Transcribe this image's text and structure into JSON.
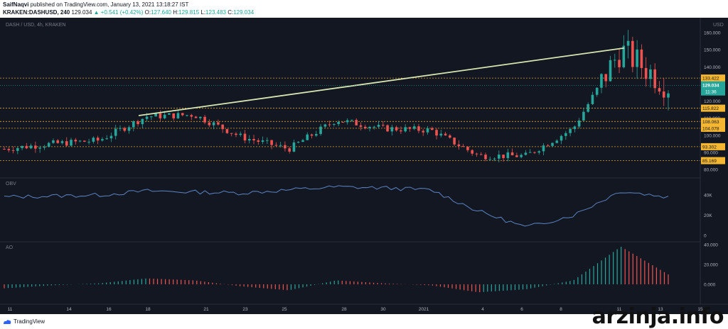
{
  "header": {
    "author": "SaifNaqvi",
    "published": "published on TradingView.com, January 13, 2021 13:18:27 IST",
    "pair": "KRAKEN:DASHUSD, 240",
    "last": "129.034",
    "change": "▲ +0.541 (+0.42%)",
    "o_label": "O:",
    "o_val": "127.640",
    "h_label": "H:",
    "h_val": "129.815",
    "l_label": "L:",
    "l_val": "123.483",
    "c_label": "C:",
    "c_val": "129.034"
  },
  "chart": {
    "symbol_label": "DASH / USD, 4h, KRAKEN",
    "currency_label": "USD",
    "price_ticks": [
      "160.000",
      "150.000",
      "140.000",
      "130.000",
      "120.000",
      "110.000",
      "100.000",
      "90.000",
      "80.000"
    ],
    "level_labels": [
      "133.422",
      "115.822",
      "108.063",
      "104.078",
      "93.302",
      "85.169"
    ],
    "current_price": "129.034",
    "countdown": "11:36",
    "obv_label": "OBV",
    "obv_ticks": [
      "40K",
      "20K",
      "0"
    ],
    "ao_label": "AO",
    "ao_ticks": [
      "40.000",
      "20.000",
      "0.000"
    ],
    "x_ticks": [
      "11",
      "14",
      "16",
      "18",
      "21",
      "23",
      "25",
      "28",
      "30",
      "2021",
      "4",
      "6",
      "8",
      "11",
      "13",
      "15"
    ]
  },
  "colors": {
    "background": "#131722",
    "up": "#26a69a",
    "down": "#ef5350",
    "level_line": "#e0a030",
    "level_label_bg": "#f5b731",
    "trendline": "#d7e6b1",
    "obv_line": "#5b84c4",
    "price_label_bg": "#26a69a"
  },
  "footer": {
    "tradingview": "TradingView",
    "watermark": "arzinja.info"
  },
  "chart_data": [
    {
      "type": "line",
      "title": "DASH / USD, 4h, KRAKEN",
      "ylabel": "USD",
      "ylim": [
        80,
        160
      ],
      "x": [
        "11",
        "14",
        "16",
        "18",
        "21",
        "23",
        "25",
        "28",
        "30",
        "2021",
        "4",
        "6",
        "8",
        "11",
        "13"
      ],
      "series": [
        {
          "name": "DASH / USD",
          "values": [
            92,
            95,
            97,
            111,
            112,
            99,
            92,
            109,
            104,
            103,
            88,
            88,
            104,
            150,
            129
          ]
        }
      ],
      "horizontal_levels": [
        133.422,
        115.822,
        108.063,
        104.078,
        93.302,
        85.169
      ],
      "trendline": {
        "from": {
          "x": "17",
          "y": 111.5
        },
        "to": {
          "x": "11",
          "y": 151
        }
      }
    },
    {
      "type": "line",
      "title": "OBV",
      "ylim": [
        0,
        55000
      ],
      "x": [
        "11",
        "14",
        "16",
        "18",
        "21",
        "23",
        "25",
        "28",
        "30",
        "2021",
        "4",
        "6",
        "8",
        "11",
        "13"
      ],
      "values": [
        38000,
        39000,
        40000,
        44000,
        43000,
        42000,
        45000,
        48000,
        47000,
        45000,
        24000,
        8000,
        20000,
        44000,
        38000
      ]
    },
    {
      "type": "bar",
      "title": "AO",
      "ylim": [
        -10,
        45
      ],
      "x": [
        "11",
        "14",
        "16",
        "18",
        "21",
        "23",
        "25",
        "28",
        "30",
        "2021",
        "4",
        "6",
        "8",
        "11",
        "13"
      ],
      "values": [
        -4,
        -1,
        1,
        6,
        4,
        -2,
        -6,
        4,
        1,
        -1,
        -8,
        -5,
        4,
        38,
        10
      ]
    }
  ]
}
